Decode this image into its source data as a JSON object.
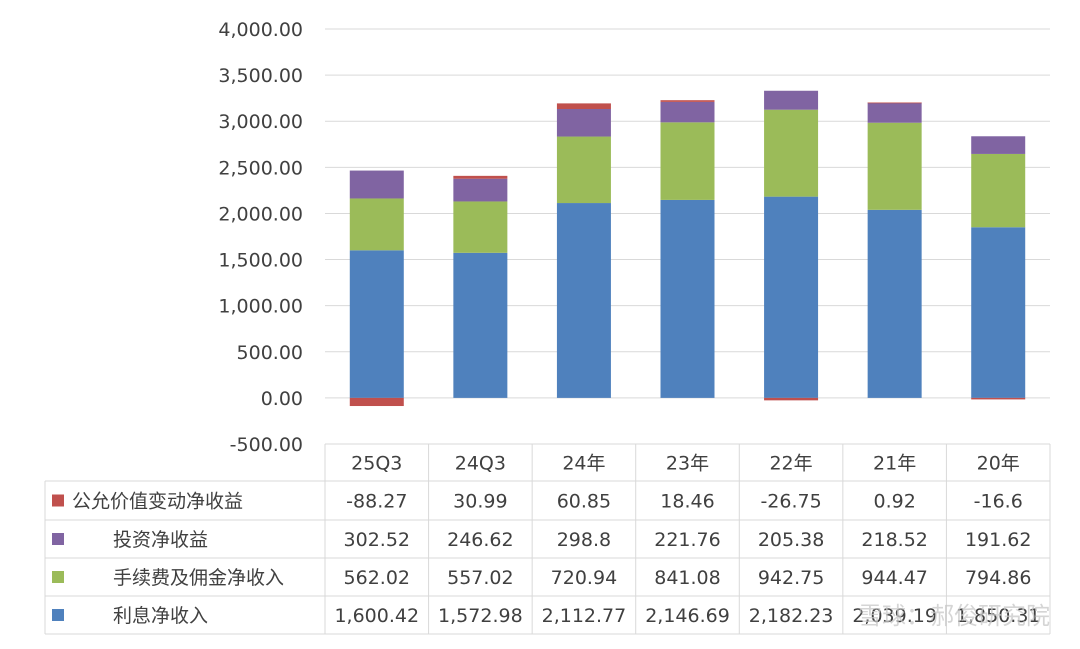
{
  "chart_data": {
    "type": "bar",
    "stacked": true,
    "categories": [
      "25Q3",
      "24Q3",
      "24年",
      "23年",
      "22年",
      "21年",
      "20年"
    ],
    "ylim": [
      -500,
      4000
    ],
    "yticks": [
      "4,000.00",
      "3,500.00",
      "3,000.00",
      "2,500.00",
      "2,000.00",
      "1,500.00",
      "1,000.00",
      "500.00",
      "0.00",
      "-500.00"
    ],
    "ytick_values": [
      4000,
      3500,
      3000,
      2500,
      2000,
      1500,
      1000,
      500,
      0,
      -500
    ],
    "grid": true,
    "series": [
      {
        "key": "interest",
        "name": "利息净收入",
        "color": "#4F81BD",
        "values": [
          1600.42,
          1572.98,
          2112.77,
          2146.69,
          2182.23,
          2039.19,
          1850.31
        ],
        "labels": [
          "1,600.42",
          "1,572.98",
          "2,112.77",
          "2,146.69",
          "2,182.23",
          "2,039.19",
          "1,850.31"
        ]
      },
      {
        "key": "fee",
        "name": "手续费及佣金净收入",
        "color": "#9BBB59",
        "values": [
          562.02,
          557.02,
          720.94,
          841.08,
          942.75,
          944.47,
          794.86
        ],
        "labels": [
          "562.02",
          "557.02",
          "720.94",
          "841.08",
          "942.75",
          "944.47",
          "794.86"
        ]
      },
      {
        "key": "invest",
        "name": "投资净收益",
        "color": "#8064A2",
        "values": [
          302.52,
          246.62,
          298.8,
          221.76,
          205.38,
          218.52,
          191.62
        ],
        "labels": [
          "302.52",
          "246.62",
          "298.8",
          "221.76",
          "205.38",
          "218.52",
          "191.62"
        ]
      },
      {
        "key": "fairvalue",
        "name": "公允价值变动净收益",
        "color": "#C0504D",
        "values": [
          -88.27,
          30.99,
          60.85,
          18.46,
          -26.75,
          0.92,
          -16.6
        ],
        "labels": [
          "-88.27",
          "30.99",
          "60.85",
          "18.46",
          "-26.75",
          "0.92",
          "-16.6"
        ]
      }
    ],
    "table_row_order": [
      "fairvalue",
      "invest",
      "fee",
      "interest"
    ]
  },
  "watermark": "雪球：郝俊研究院"
}
